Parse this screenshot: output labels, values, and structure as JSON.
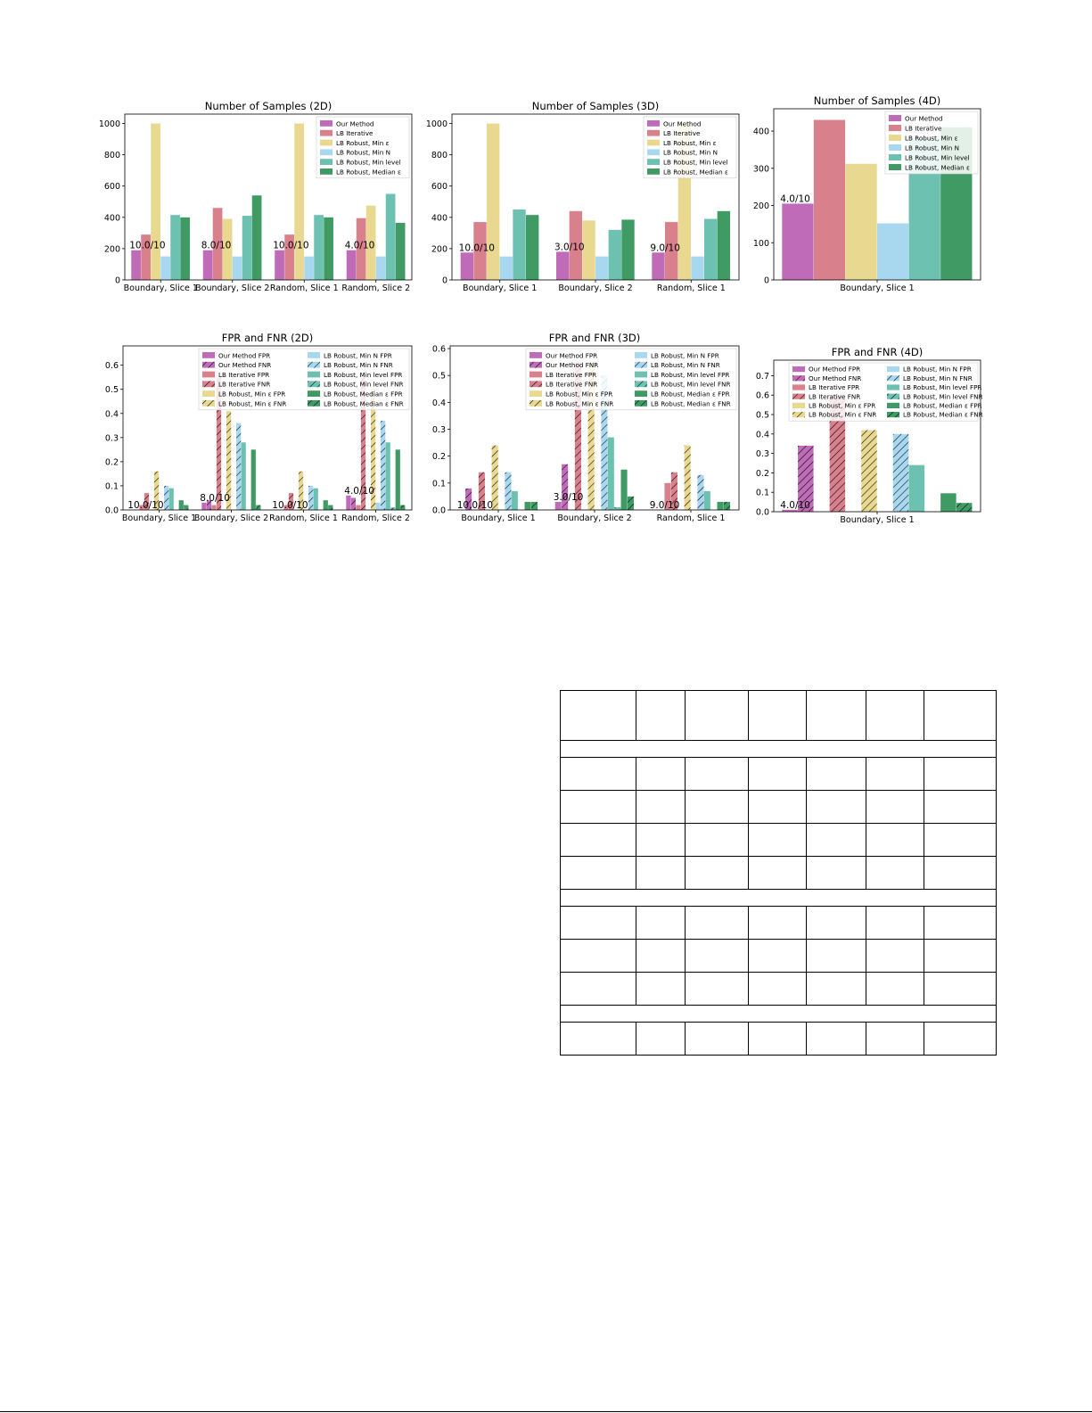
{
  "figures": {
    "row1": [
      {
        "id": "samples-2d",
        "chart_data": {
          "type": "bar",
          "title": "Number of Samples (2D)",
          "categories": [
            "Boundary, Slice 1",
            "Boundary, Slice 2",
            "Random, Slice 1",
            "Random, Slice 2"
          ],
          "series": [
            {
              "name": "Our Method",
              "values": [
                190,
                190,
                190,
                190
              ]
            },
            {
              "name": "LB Iterative",
              "values": [
                290,
                460,
                290,
                395
              ]
            },
            {
              "name": "LB Robust, Min ε",
              "values": [
                1000,
                390,
                1000,
                475
              ]
            },
            {
              "name": "LB Robust, Min N",
              "values": [
                150,
                150,
                150,
                150
              ]
            },
            {
              "name": "LB Robust, Min level",
              "values": [
                415,
                410,
                415,
                550
              ]
            },
            {
              "name": "LB Robust, Median ε",
              "values": [
                400,
                540,
                400,
                365
              ]
            }
          ],
          "annotations": [
            {
              "category": "Boundary, Slice 1",
              "text": "10.0/10"
            },
            {
              "category": "Boundary, Slice 2",
              "text": "8.0/10"
            },
            {
              "category": "Random, Slice 1",
              "text": "10.0/10"
            },
            {
              "category": "Random, Slice 2",
              "text": "4.0/10"
            }
          ],
          "ylim": [
            0,
            1060
          ],
          "yticks": [
            0,
            200,
            400,
            600,
            800,
            1000
          ],
          "legend": "top-right"
        }
      },
      {
        "id": "samples-3d",
        "chart_data": {
          "type": "bar",
          "title": "Number of Samples (3D)",
          "categories": [
            "Boundary, Slice 1",
            "Boundary, Slice 2",
            "Random, Slice 1"
          ],
          "series": [
            {
              "name": "Our Method",
              "values": [
                175,
                180,
                175
              ]
            },
            {
              "name": "LB Iterative",
              "values": [
                370,
                440,
                370
              ]
            },
            {
              "name": "LB Robust, Min ε",
              "values": [
                1000,
                380,
                1000
              ]
            },
            {
              "name": "LB Robust, Min N",
              "values": [
                150,
                150,
                150
              ]
            },
            {
              "name": "LB Robust, Min level",
              "values": [
                450,
                320,
                390
              ]
            },
            {
              "name": "LB Robust, Median ε",
              "values": [
                415,
                385,
                440
              ]
            }
          ],
          "annotations": [
            {
              "category": "Boundary, Slice 1",
              "text": "10.0/10"
            },
            {
              "category": "Boundary, Slice 2",
              "text": "3.0/10"
            },
            {
              "category": "Random, Slice 1",
              "text": "9.0/10"
            }
          ],
          "ylim": [
            0,
            1060
          ],
          "yticks": [
            0,
            200,
            400,
            600,
            800,
            1000
          ],
          "legend": "top-right"
        }
      },
      {
        "id": "samples-4d",
        "chart_data": {
          "type": "bar",
          "title": "Number of Samples (4D)",
          "categories": [
            "Boundary, Slice 1"
          ],
          "series": [
            {
              "name": "Our Method",
              "values": [
                205
              ]
            },
            {
              "name": "LB Iterative",
              "values": [
                430
              ]
            },
            {
              "name": "LB Robust, Min ε",
              "values": [
                312
              ]
            },
            {
              "name": "LB Robust, Min N",
              "values": [
                152
              ]
            },
            {
              "name": "LB Robust, Min level",
              "values": [
                380
              ]
            },
            {
              "name": "LB Robust, Median ε",
              "values": [
                410
              ]
            }
          ],
          "annotations": [
            {
              "category": "Boundary, Slice 1",
              "text": "4.0/10"
            }
          ],
          "ylim": [
            0,
            460
          ],
          "yticks": [
            0,
            100,
            200,
            300,
            400
          ],
          "legend": "top-right"
        }
      }
    ],
    "row2": [
      {
        "id": "fpr-fnr-2d",
        "chart_data": {
          "type": "bar",
          "title": "FPR and FNR (2D)",
          "categories": [
            "Boundary, Slice 1",
            "Boundary, Slice 2",
            "Random, Slice 1",
            "Random, Slice 2"
          ],
          "series": [
            {
              "name": "Our Method FPR",
              "values": [
                0.0,
                0.03,
                0.0,
                0.06
              ]
            },
            {
              "name": "Our Method FNR",
              "values": [
                0.0,
                0.04,
                0.0,
                0.05
              ]
            },
            {
              "name": "LB Iterative FPR",
              "values": [
                0.02,
                0.02,
                0.02,
                0.02
              ]
            },
            {
              "name": "LB Iterative FNR",
              "values": [
                0.07,
                0.55,
                0.07,
                0.55
              ]
            },
            {
              "name": "LB Robust, Min ε FPR",
              "values": [
                0.0,
                0.0,
                0.0,
                0.0
              ]
            },
            {
              "name": "LB Robust, Min ε FNR",
              "values": [
                0.16,
                0.41,
                0.16,
                0.5
              ]
            },
            {
              "name": "LB Robust, Min N FPR",
              "values": [
                0.0,
                0.0,
                0.0,
                0.03
              ]
            },
            {
              "name": "LB Robust, Min N FNR",
              "values": [
                0.1,
                0.36,
                0.1,
                0.37
              ]
            },
            {
              "name": "LB Robust, Min level FPR",
              "values": [
                0.09,
                0.28,
                0.09,
                0.28
              ]
            },
            {
              "name": "LB Robust, Min level FNR",
              "values": [
                0.0,
                0.0,
                0.0,
                0.01
              ]
            },
            {
              "name": "LB Robust, Median ε FPR",
              "values": [
                0.04,
                0.25,
                0.04,
                0.25
              ]
            },
            {
              "name": "LB Robust, Median ε FNR",
              "values": [
                0.02,
                0.02,
                0.02,
                0.02
              ]
            }
          ],
          "annotations": [
            {
              "category": "Boundary, Slice 1",
              "text": "10.0/10"
            },
            {
              "category": "Boundary, Slice 2",
              "text": "8.0/10"
            },
            {
              "category": "Random, Slice 1",
              "text": "10.0/10"
            },
            {
              "category": "Random, Slice 2",
              "text": "4.0/10"
            }
          ],
          "ylim": [
            0,
            0.68
          ],
          "yticks": [
            0.0,
            0.1,
            0.2,
            0.3,
            0.4,
            0.5,
            0.6
          ],
          "legend": "top-right"
        }
      },
      {
        "id": "fpr-fnr-3d",
        "chart_data": {
          "type": "bar",
          "title": "FPR and FNR (3D)",
          "categories": [
            "Boundary, Slice 1",
            "Boundary, Slice 2",
            "Random, Slice 1"
          ],
          "series": [
            {
              "name": "Our Method FPR",
              "values": [
                0.0,
                0.03,
                0.0
              ]
            },
            {
              "name": "Our Method FNR",
              "values": [
                0.08,
                0.17,
                0.0
              ]
            },
            {
              "name": "LB Iterative FPR",
              "values": [
                0.0,
                0.0,
                0.1
              ]
            },
            {
              "name": "LB Iterative FNR",
              "values": [
                0.14,
                0.55,
                0.14
              ]
            },
            {
              "name": "LB Robust, Min ε FPR",
              "values": [
                0.0,
                0.0,
                0.0
              ]
            },
            {
              "name": "LB Robust, Min ε FNR",
              "values": [
                0.24,
                0.55,
                0.24
              ]
            },
            {
              "name": "LB Robust, Min N FPR",
              "values": [
                0.0,
                0.0,
                0.0
              ]
            },
            {
              "name": "LB Robust, Min N FNR",
              "values": [
                0.14,
                0.5,
                0.13
              ]
            },
            {
              "name": "LB Robust, Min level FPR",
              "values": [
                0.07,
                0.27,
                0.07
              ]
            },
            {
              "name": "LB Robust, Min level FNR",
              "values": [
                0.0,
                0.01,
                0.0
              ]
            },
            {
              "name": "LB Robust, Median ε FPR",
              "values": [
                0.03,
                0.15,
                0.03
              ]
            },
            {
              "name": "LB Robust, Median ε FNR",
              "values": [
                0.03,
                0.05,
                0.03
              ]
            }
          ],
          "annotations": [
            {
              "category": "Boundary, Slice 1",
              "text": "10.0/10"
            },
            {
              "category": "Boundary, Slice 2",
              "text": "3.0/10"
            },
            {
              "category": "Random, Slice 1",
              "text": "9.0/10"
            }
          ],
          "ylim": [
            0,
            0.61
          ],
          "yticks": [
            0.0,
            0.1,
            0.2,
            0.3,
            0.4,
            0.5,
            0.6
          ],
          "legend": "top-right"
        }
      },
      {
        "id": "fpr-fnr-4d",
        "chart_data": {
          "type": "bar",
          "title": "FPR and FNR (4D)",
          "categories": [
            "Boundary, Slice 1"
          ],
          "series": [
            {
              "name": "Our Method FPR",
              "values": [
                0.01
              ]
            },
            {
              "name": "Our Method FNR",
              "values": [
                0.34
              ]
            },
            {
              "name": "LB Iterative FPR",
              "values": [
                0.0
              ]
            },
            {
              "name": "LB Iterative FNR",
              "values": [
                0.6
              ]
            },
            {
              "name": "LB Robust, Min ε FPR",
              "values": [
                0.0
              ]
            },
            {
              "name": "LB Robust, Min ε FNR",
              "values": [
                0.42
              ]
            },
            {
              "name": "LB Robust, Min N FPR",
              "values": [
                0.0
              ]
            },
            {
              "name": "LB Robust, Min N FNR",
              "values": [
                0.4
              ]
            },
            {
              "name": "LB Robust, Min level FPR",
              "values": [
                0.24
              ]
            },
            {
              "name": "LB Robust, Min level FNR",
              "values": [
                0.0
              ]
            },
            {
              "name": "LB Robust, Median ε FPR",
              "values": [
                0.095
              ]
            },
            {
              "name": "LB Robust, Median ε FNR",
              "values": [
                0.045
              ]
            }
          ],
          "annotations": [
            {
              "category": "Boundary, Slice 1",
              "text": "4.0/10"
            }
          ],
          "ylim": [
            0,
            0.78
          ],
          "yticks": [
            0.0,
            0.1,
            0.2,
            0.3,
            0.4,
            0.5,
            0.6,
            0.7
          ],
          "legend": "top-right"
        }
      }
    ]
  },
  "colors": {
    "Our Method": "#c06bb8",
    "LB Iterative": "#d9808d",
    "LB Robust, Min ε": "#e8d890",
    "LB Robust, Min N": "#a8d8f0",
    "LB Robust, Min level": "#6cc1b0",
    "LB Robust, Median ε": "#3f9a64"
  }
}
